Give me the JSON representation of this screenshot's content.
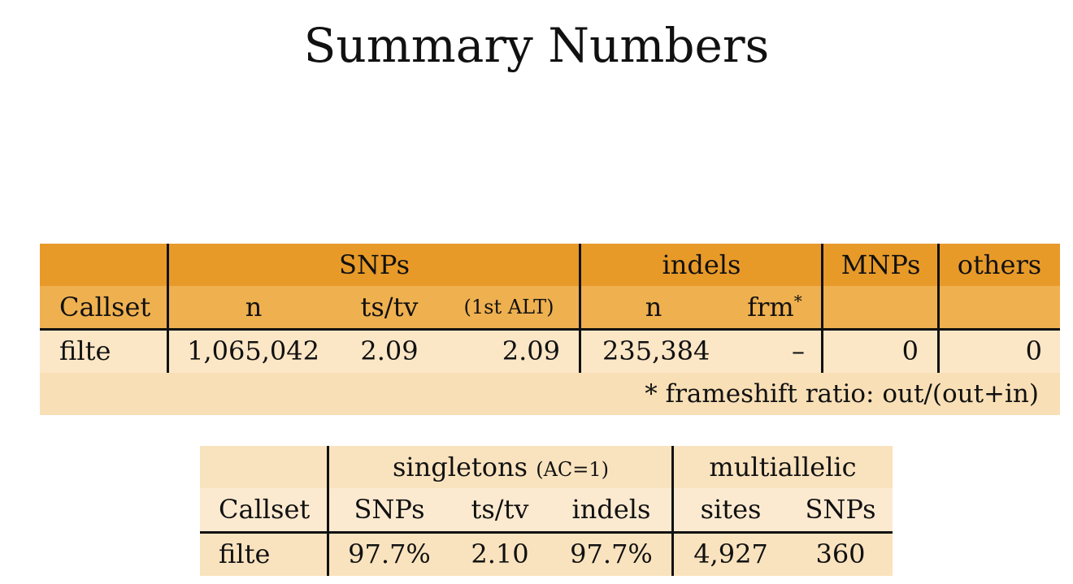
{
  "title": "Summary Numbers",
  "colors": {
    "header_dark": "#E89A28",
    "header_mid": "#EFB04F",
    "row_light": "#FBE6C6",
    "note_bg": "#F8DFB6",
    "table2_bg": "#F9E3BE"
  },
  "table1": {
    "groups": {
      "snps": "SNPs",
      "indels": "indels",
      "mnps": "MNPs",
      "others": "others"
    },
    "columns": {
      "callset": "Callset",
      "snps_n": "n",
      "snps_tstv": "ts/tv",
      "snps_first_alt": "(1st ALT)",
      "indels_n": "n",
      "indels_frm": "frm",
      "frm_mark": "*"
    },
    "row": {
      "callset": "filte",
      "snps_n": "1,065,042",
      "snps_tstv": "2.09",
      "snps_first_alt": "2.09",
      "indels_n": "235,384",
      "indels_frm": "–",
      "mnps": "0",
      "others": "0"
    },
    "footnote": "* frameshift ratio: out/(out+in)"
  },
  "table2": {
    "groups": {
      "singletons": "singletons",
      "singletons_note": "(AC=1)",
      "multiallelic": "multiallelic"
    },
    "columns": {
      "callset": "Callset",
      "singleton_snps": "SNPs",
      "singleton_tstv": "ts/tv",
      "singleton_indels": "indels",
      "multi_sites": "sites",
      "multi_snps": "SNPs"
    },
    "row": {
      "callset": "filte",
      "singleton_snps": "97.7%",
      "singleton_tstv": "2.10",
      "singleton_indels": "97.7%",
      "multi_sites": "4,927",
      "multi_snps": "360"
    }
  }
}
